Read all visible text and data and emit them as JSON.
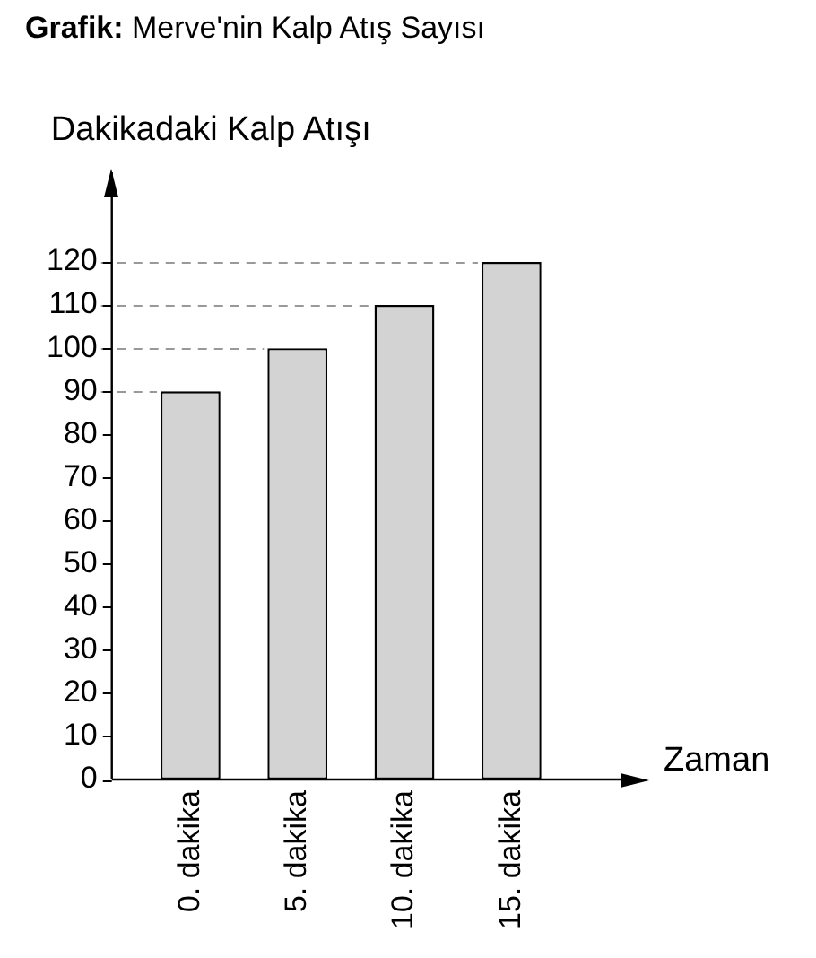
{
  "chart_data": {
    "type": "bar",
    "title": "Grafik: Merve'nin Kalp Atış Sayısı",
    "ylabel": "Dakikadaki Kalp Atışı",
    "xlabel": "Zaman",
    "categories": [
      "0. dakika",
      "5. dakika",
      "10. dakika",
      "15. dakika"
    ],
    "values": [
      90,
      100,
      110,
      120
    ],
    "color": "#d3d3d3",
    "ylim": [
      0,
      120
    ],
    "yticks": [
      0,
      10,
      20,
      30,
      40,
      50,
      60,
      70,
      80,
      90,
      100,
      110,
      120
    ],
    "ref_lines": [
      {
        "axis": "y",
        "value": 90,
        "color": "#999999",
        "line_style": "dashed"
      },
      {
        "axis": "y",
        "value": 100,
        "color": "#999999",
        "line_style": "dashed"
      },
      {
        "axis": "y",
        "value": 110,
        "color": "#999999",
        "line_style": "dashed"
      },
      {
        "axis": "y",
        "value": 120,
        "color": "#999999",
        "line_style": "dashed"
      }
    ],
    "grid": false,
    "legend": false
  }
}
